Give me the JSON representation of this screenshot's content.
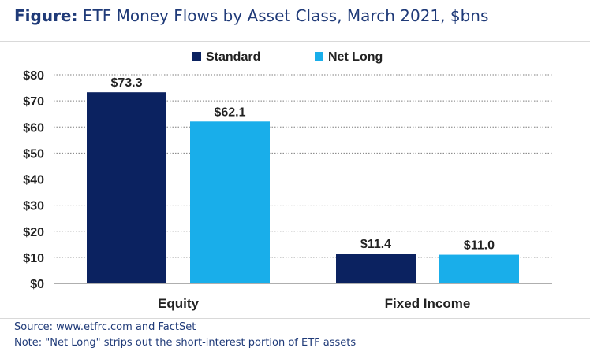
{
  "title_prefix": "Figure:",
  "title_main": " ETF Money Flows by Asset Class, March 2021, $bns",
  "source": "Source: www.etfrc.com and FactSet",
  "note": "Note: \"Net Long\" strips out the short-interest portion of ETF assets",
  "colors": {
    "standard": "#0b2260",
    "net_long": "#19aeea",
    "text": "#1f3a78",
    "grid": "#7f7f7f"
  },
  "chart_data": {
    "type": "bar",
    "title": "",
    "xlabel": "",
    "ylabel": "",
    "categories": [
      "Equity",
      "Fixed Income"
    ],
    "series": [
      {
        "name": "Standard",
        "values": [
          73.3,
          11.4
        ],
        "labels": [
          "$73.3",
          "$11.4"
        ]
      },
      {
        "name": "Net Long",
        "values": [
          62.1,
          11.0
        ],
        "labels": [
          "$62.1",
          "$11.0"
        ]
      }
    ],
    "ylim": [
      0,
      80
    ],
    "yticks": [
      0,
      10,
      20,
      30,
      40,
      50,
      60,
      70,
      80
    ],
    "ytick_labels": [
      "$0",
      "$10",
      "$20",
      "$30",
      "$40",
      "$50",
      "$60",
      "$70",
      "$80"
    ],
    "grid": true,
    "grid_style": "dotted horizontal",
    "legend": "top"
  }
}
